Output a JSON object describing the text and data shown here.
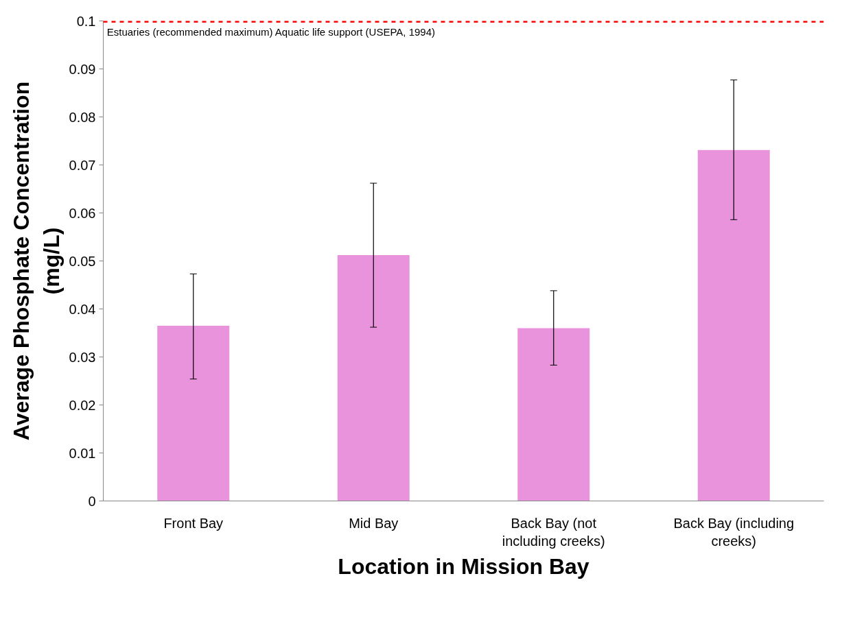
{
  "chart_data": {
    "type": "bar",
    "xlabel": "Location in Mission Bay",
    "ylabel": "Average Phosphate Concentration (mg/L)",
    "categories": [
      "Front Bay",
      "Mid Bay",
      "Back Bay (not including creeks)",
      "Back Bay (including creeks)"
    ],
    "values": [
      0.0365,
      0.0512,
      0.036,
      0.0731
    ],
    "errors": [
      [
        0.0254,
        0.0473
      ],
      [
        0.0362,
        0.0662
      ],
      [
        0.0283,
        0.0438
      ],
      [
        0.0586,
        0.0877
      ]
    ],
    "color": "#e993dc",
    "ylim": [
      0,
      0.1
    ],
    "yticks": [
      0,
      0.01,
      0.02,
      0.03,
      0.04,
      0.05,
      0.06,
      0.07,
      0.08,
      0.09,
      0.1
    ],
    "ref_lines": [
      {
        "axis": "y",
        "value": 0.1,
        "label": "Estuaries (recommended maximum) Aquatic life support (USEPA, 1994)",
        "color": "#ff0000",
        "line_style": "dashed"
      }
    ],
    "grid": false
  }
}
